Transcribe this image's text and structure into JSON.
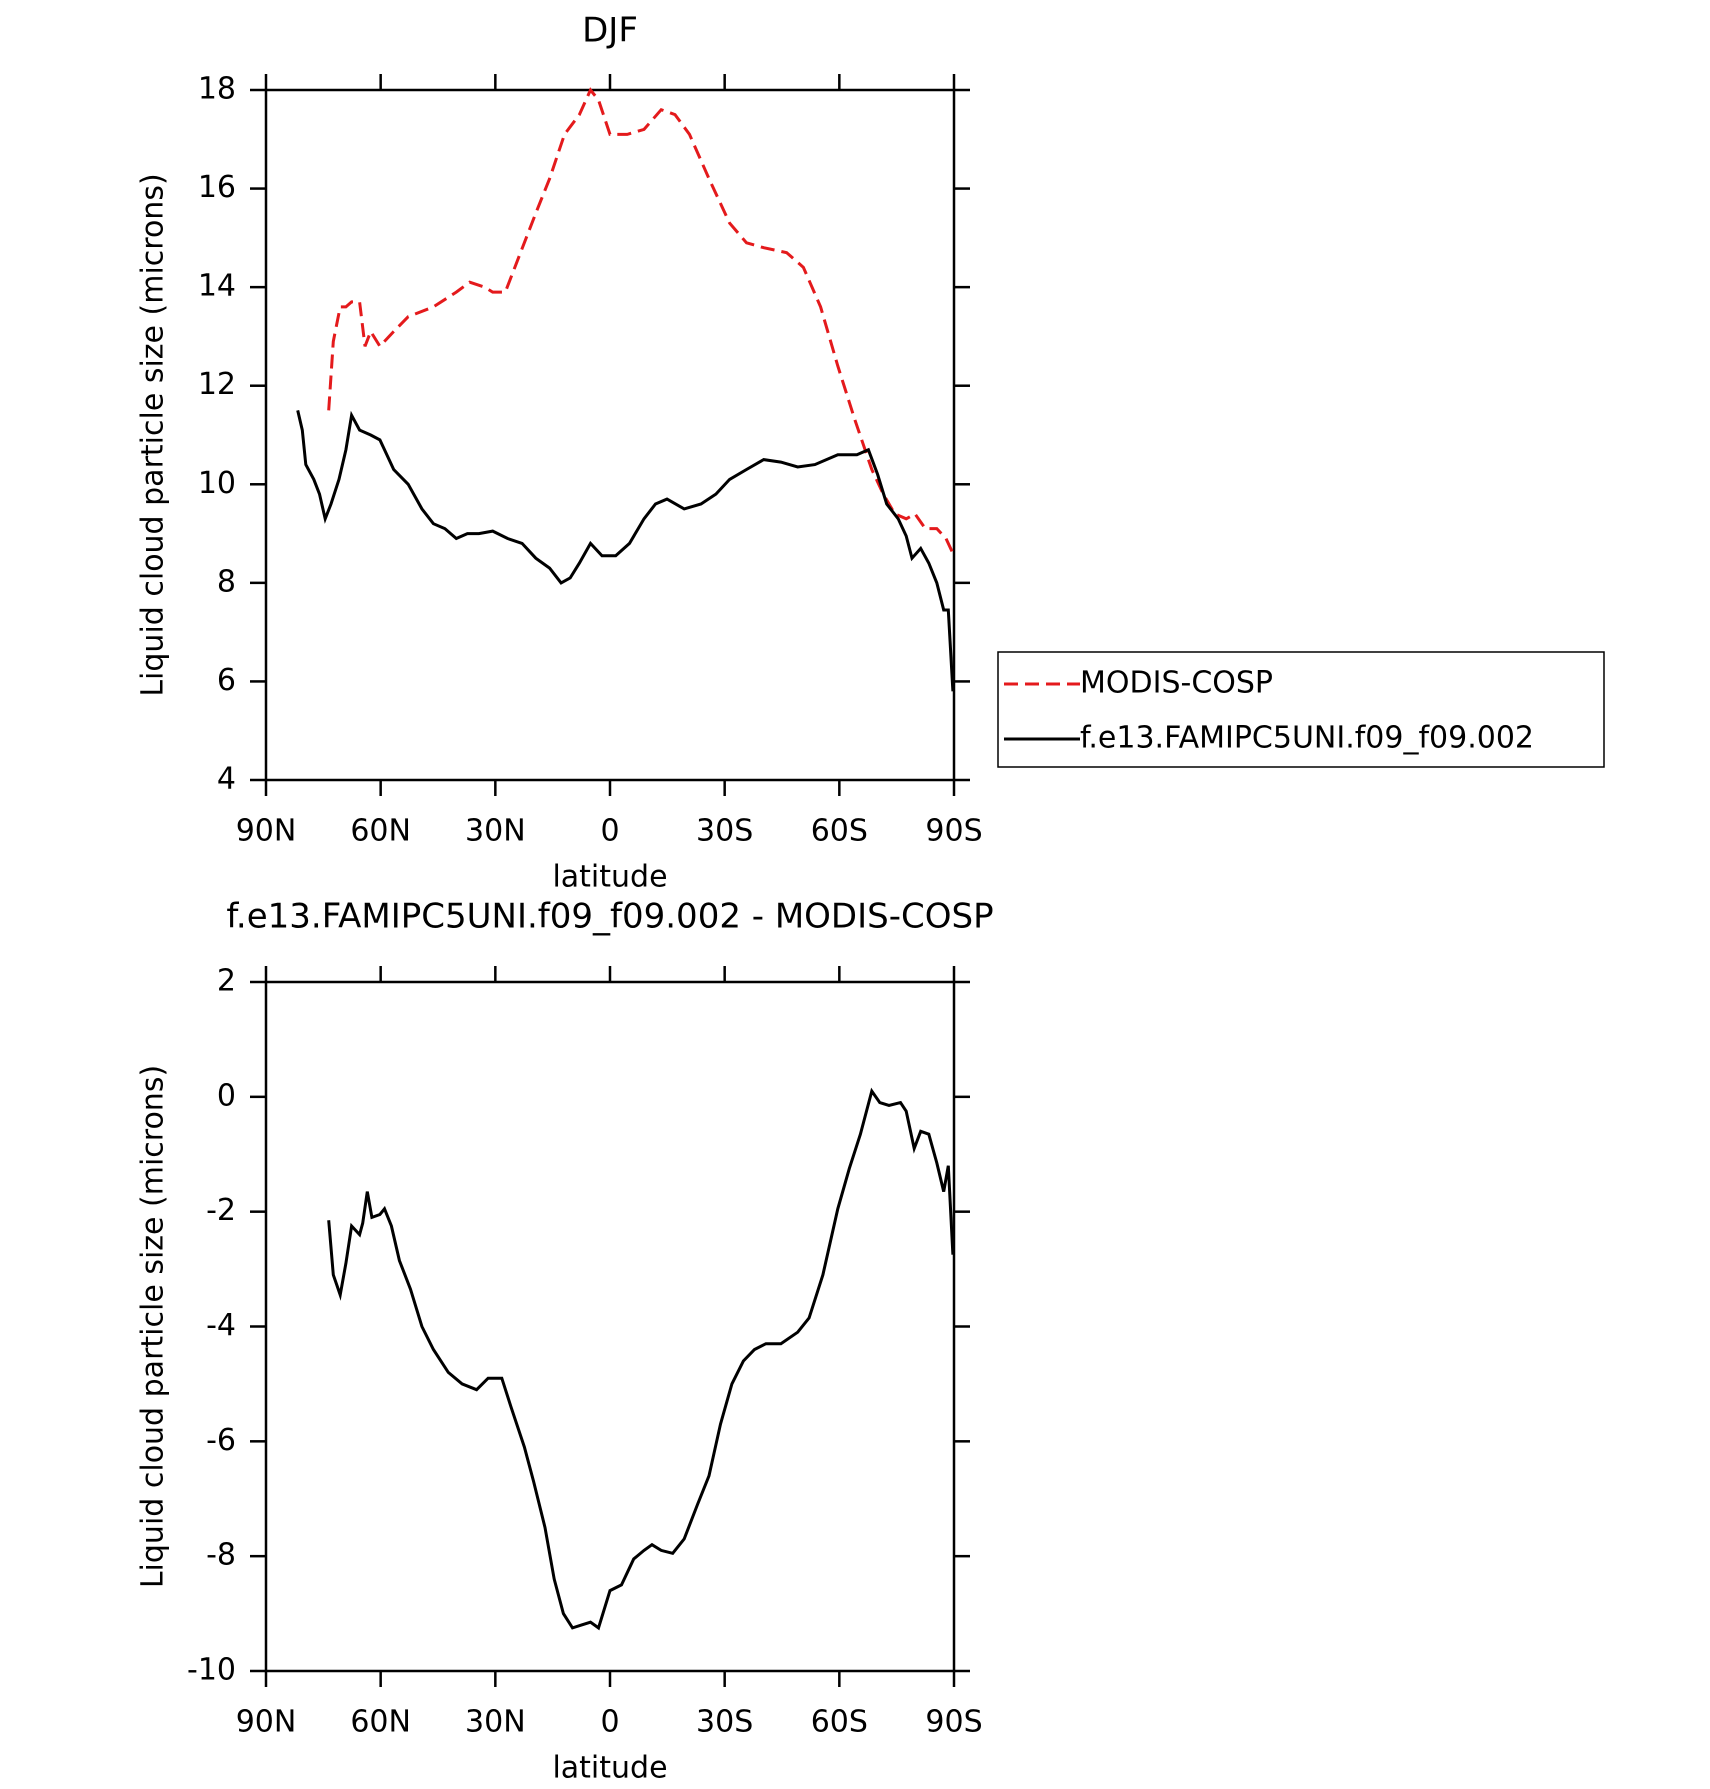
{
  "chart_data": [
    {
      "type": "line",
      "title": "DJF",
      "xlabel": "latitude",
      "ylabel": "Liquid cloud particle size (microns)",
      "xlim": [
        90,
        -90
      ],
      "xticks": [
        {
          "value": 90,
          "label": "90N"
        },
        {
          "value": 60,
          "label": "60N"
        },
        {
          "value": 30,
          "label": "30N"
        },
        0,
        {
          "value": -30,
          "label": "30S"
        },
        {
          "value": -60,
          "label": "60S"
        },
        {
          "value": -90,
          "label": "90S"
        }
      ],
      "ylim": [
        4,
        18
      ],
      "yticks": [
        4,
        6,
        8,
        10,
        12,
        14,
        16,
        18
      ],
      "legend": "right",
      "series": [
        {
          "name": "MODIS-COSP",
          "color": "#e41a1c",
          "style": "dashed",
          "x": [
            73.6,
            72.4,
            70.6,
            69.1,
            67.6,
            65.5,
            64.1,
            62.6,
            60.2,
            56.6,
            52.8,
            46.2,
            40.2,
            36.7,
            32.8,
            30.7,
            27.4,
            23.9,
            19.4,
            15.8,
            11.9,
            8.0,
            5.1,
            3.0,
            0.0,
            -4.5,
            -8.9,
            -13.4,
            -17.0,
            -20.8,
            -25.9,
            -31.3,
            -35.7,
            -40.2,
            -46.2,
            -50.6,
            -55.1,
            -59.6,
            -64.1,
            -68.5,
            -71.5,
            -74.5,
            -77.5,
            -79.8,
            -82.5,
            -85.5,
            -87.9,
            -89.7
          ],
          "values": [
            11.5,
            12.9,
            13.6,
            13.6,
            13.7,
            13.7,
            12.8,
            13.1,
            12.8,
            13.1,
            13.4,
            13.6,
            13.9,
            14.1,
            14.0,
            13.9,
            13.9,
            14.6,
            15.5,
            16.2,
            17.1,
            17.5,
            18.0,
            17.8,
            17.1,
            17.1,
            17.2,
            17.6,
            17.5,
            17.1,
            16.2,
            15.3,
            14.9,
            14.8,
            14.7,
            14.4,
            13.6,
            12.4,
            11.3,
            10.3,
            9.8,
            9.4,
            9.3,
            9.4,
            9.1,
            9.1,
            8.9,
            8.6
          ]
        },
        {
          "name": "f.e13.FAMIPC5UNI.f09_f09.002",
          "color": "#000000",
          "style": "solid",
          "x": [
            81.7,
            80.5,
            79.6,
            77.5,
            76.0,
            74.5,
            73.0,
            70.9,
            69.1,
            67.6,
            65.5,
            62.6,
            60.2,
            56.6,
            52.8,
            49.2,
            46.2,
            43.2,
            40.2,
            37.3,
            34.3,
            30.7,
            26.8,
            23.0,
            19.4,
            15.8,
            12.8,
            10.4,
            8.0,
            5.1,
            2.1,
            -1.5,
            -5.1,
            -8.9,
            -11.9,
            -14.9,
            -19.4,
            -23.8,
            -27.7,
            -31.3,
            -35.7,
            -40.2,
            -44.7,
            -49.1,
            -53.6,
            -59.6,
            -64.6,
            -67.6,
            -70.0,
            -72.4,
            -75.4,
            -77.5,
            -79.0,
            -81.3,
            -83.4,
            -85.5,
            -87.3,
            -88.5,
            -89.7
          ],
          "values": [
            11.5,
            11.1,
            10.4,
            10.1,
            9.8,
            9.3,
            9.6,
            10.1,
            10.7,
            11.4,
            11.1,
            11.0,
            10.9,
            10.3,
            10.0,
            9.5,
            9.2,
            9.1,
            8.9,
            9.0,
            9.0,
            9.05,
            8.9,
            8.8,
            8.5,
            8.3,
            8.0,
            8.1,
            8.4,
            8.8,
            8.55,
            8.55,
            8.8,
            9.3,
            9.6,
            9.7,
            9.5,
            9.6,
            9.8,
            10.1,
            10.3,
            10.5,
            10.45,
            10.35,
            10.4,
            10.6,
            10.6,
            10.7,
            10.2,
            9.6,
            9.3,
            8.95,
            8.5,
            8.7,
            8.4,
            8.0,
            7.45,
            7.45,
            5.8
          ]
        }
      ]
    },
    {
      "type": "line",
      "title": "f.e13.FAMIPC5UNI.f09_f09.002 - MODIS-COSP",
      "xlabel": "latitude",
      "ylabel": "Liquid cloud particle size (microns)",
      "xlim": [
        90,
        -90
      ],
      "xticks": [
        {
          "value": 90,
          "label": "90N"
        },
        {
          "value": 60,
          "label": "60N"
        },
        {
          "value": 30,
          "label": "30N"
        },
        0,
        {
          "value": -30,
          "label": "30S"
        },
        {
          "value": -60,
          "label": "60S"
        },
        {
          "value": -90,
          "label": "90S"
        }
      ],
      "ylim": [
        -10,
        2
      ],
      "yticks": [
        -10,
        -8,
        -6,
        -4,
        -2,
        0,
        2
      ],
      "series": [
        {
          "color": "#000000",
          "style": "solid",
          "x": [
            73.6,
            72.4,
            70.6,
            69.1,
            67.6,
            65.5,
            64.7,
            63.5,
            62.3,
            60.2,
            59.0,
            57.2,
            55.1,
            52.2,
            49.2,
            46.2,
            42.3,
            38.7,
            34.9,
            31.9,
            28.3,
            25.9,
            22.4,
            20.0,
            17.0,
            14.6,
            12.2,
            9.8,
            7.5,
            5.1,
            3.0,
            0.0,
            -3.0,
            -6.2,
            -8.9,
            -11.0,
            -13.4,
            -16.4,
            -19.4,
            -22.9,
            -25.9,
            -28.9,
            -31.9,
            -34.9,
            -37.8,
            -40.8,
            -44.7,
            -49.1,
            -52.1,
            -55.7,
            -59.6,
            -62.6,
            -65.5,
            -68.5,
            -70.6,
            -73.0,
            -76.0,
            -77.5,
            -79.6,
            -81.3,
            -83.4,
            -85.5,
            -87.3,
            -88.5,
            -89.7
          ],
          "values": [
            -2.15,
            -3.1,
            -3.45,
            -2.9,
            -2.25,
            -2.4,
            -2.2,
            -1.65,
            -2.1,
            -2.05,
            -1.95,
            -2.25,
            -2.85,
            -3.35,
            -4.0,
            -4.4,
            -4.8,
            -5.0,
            -5.1,
            -4.9,
            -4.9,
            -5.4,
            -6.1,
            -6.7,
            -7.5,
            -8.4,
            -9.0,
            -9.25,
            -9.2,
            -9.15,
            -9.25,
            -8.6,
            -8.5,
            -8.05,
            -7.9,
            -7.8,
            -7.9,
            -7.95,
            -7.7,
            -7.1,
            -6.6,
            -5.7,
            -5.0,
            -4.6,
            -4.4,
            -4.3,
            -4.3,
            -4.1,
            -3.85,
            -3.1,
            -1.95,
            -1.25,
            -0.65,
            0.1,
            -0.1,
            -0.15,
            -0.1,
            -0.25,
            -0.9,
            -0.6,
            -0.65,
            -1.15,
            -1.65,
            -1.2,
            -2.75
          ]
        }
      ]
    }
  ]
}
